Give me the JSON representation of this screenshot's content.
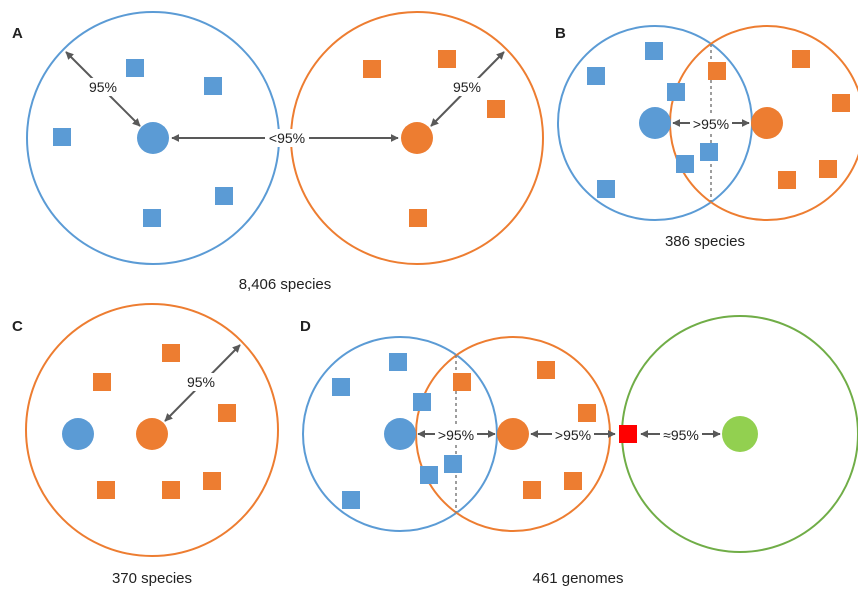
{
  "colors": {
    "blue": "#5b9bd5",
    "orange": "#ed7d31",
    "green": "#92d050",
    "red": "#ff0000",
    "arrow": "#595959",
    "divider": "#7f7f7f"
  },
  "panels": {
    "A": {
      "letter": "A",
      "caption": "8,406 species",
      "label_radius": "95%",
      "label_radius_right": "95%",
      "label_between": "<95%"
    },
    "B": {
      "letter": "B",
      "caption": "386 species",
      "label_between": ">95%"
    },
    "C": {
      "letter": "C",
      "caption": "370 species",
      "label_radius": "95%"
    },
    "D": {
      "letter": "D",
      "caption": "461 genomes",
      "label_blue_orange": ">95%",
      "label_orange_red": ">95%",
      "label_red_green": "≈95%"
    }
  }
}
